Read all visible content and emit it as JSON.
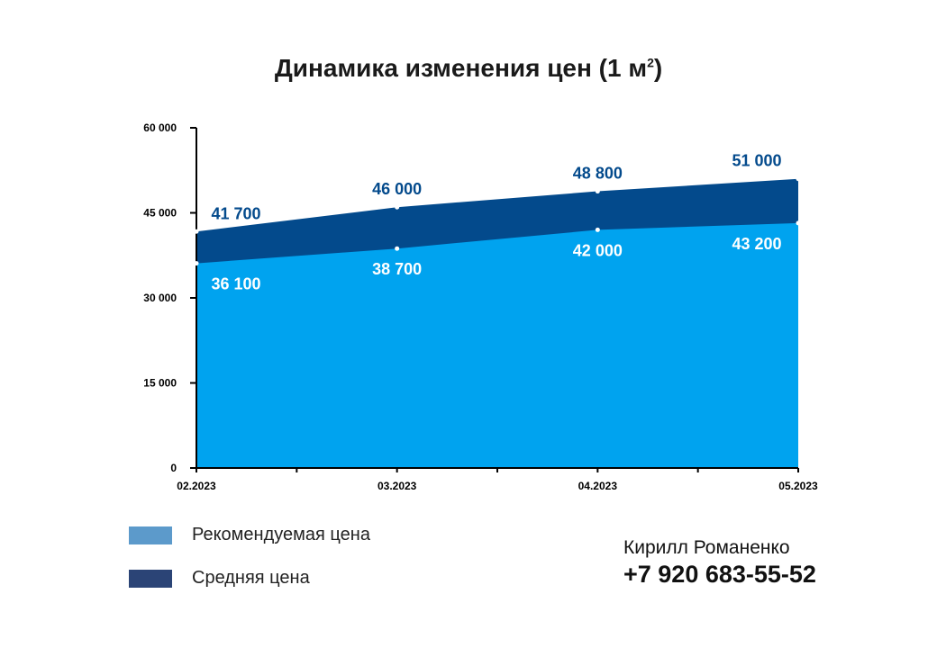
{
  "title": {
    "text": "Динамика изменения цен (1 м",
    "superscript": "2",
    "closing": ")"
  },
  "chart_data": {
    "type": "area",
    "title": "Динамика изменения цен (1 м²)",
    "categories": [
      "02.2023",
      "03.2023",
      "04.2023",
      "05.2023"
    ],
    "series": [
      {
        "name": "Рекомендуемая цена",
        "values": [
          36100,
          38700,
          42000,
          43200
        ],
        "color": "#00a3ef",
        "label_color": "#ffffff"
      },
      {
        "name": "Средняя цена",
        "values": [
          41700,
          46000,
          48800,
          51000
        ],
        "color": "#034a8c",
        "label_color": "#034a8c"
      }
    ],
    "data_labels": {
      "Рекомендуемая цена": [
        "36 100",
        "38 700",
        "42 000",
        "43 200"
      ],
      "Средняя цена": [
        "41 700",
        "46 000",
        "48 800",
        "51 000"
      ]
    },
    "ylim": [
      0,
      60000
    ],
    "yticks": [
      0,
      15000,
      30000,
      45000,
      60000
    ],
    "ytick_labels": [
      "0",
      "15 000",
      "30 000",
      "45 000",
      "60 000"
    ],
    "grid": false,
    "legend_placement": "bottom-left"
  },
  "legend": [
    {
      "label": "Рекомендуемая цена",
      "color": "#5c9acb"
    },
    {
      "label": "Средняя цена",
      "color": "#2b4476"
    }
  ],
  "contact": {
    "name": "Кирилл Романенко",
    "phone": "+7 920 683-55-52"
  }
}
